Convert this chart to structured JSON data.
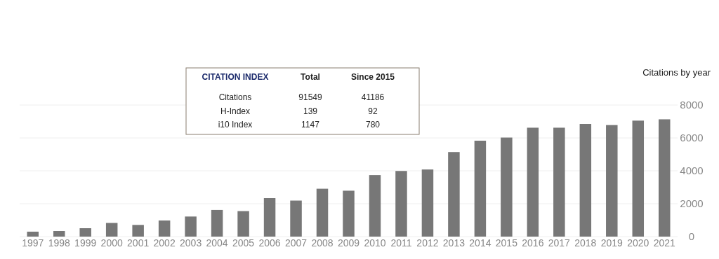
{
  "chart_data": {
    "type": "bar",
    "ylabel": "Citations by year",
    "categories": [
      "1997",
      "1998",
      "1999",
      "2000",
      "2001",
      "2002",
      "2003",
      "2004",
      "2005",
      "2006",
      "2007",
      "2008",
      "2009",
      "2010",
      "2011",
      "2012",
      "2013",
      "2014",
      "2015",
      "2016",
      "2017",
      "2018",
      "2019",
      "2020",
      "2021"
    ],
    "values": [
      300,
      340,
      510,
      830,
      710,
      980,
      1220,
      1620,
      1550,
      2340,
      2190,
      2910,
      2790,
      3740,
      3990,
      4080,
      5140,
      5830,
      6020,
      6620,
      6620,
      6850,
      6780,
      7050,
      7130
    ],
    "color": "#777777",
    "ylim": [
      0,
      8000
    ],
    "yticks": [
      0,
      2000,
      4000,
      6000,
      8000
    ],
    "grid": "y",
    "annotations": [
      "CITATION INDEX",
      "Total",
      "Since 2015",
      "Citations",
      "91549",
      "41186",
      "H-Index",
      "139",
      "92",
      "i10 Index",
      "1147",
      "780"
    ]
  }
}
